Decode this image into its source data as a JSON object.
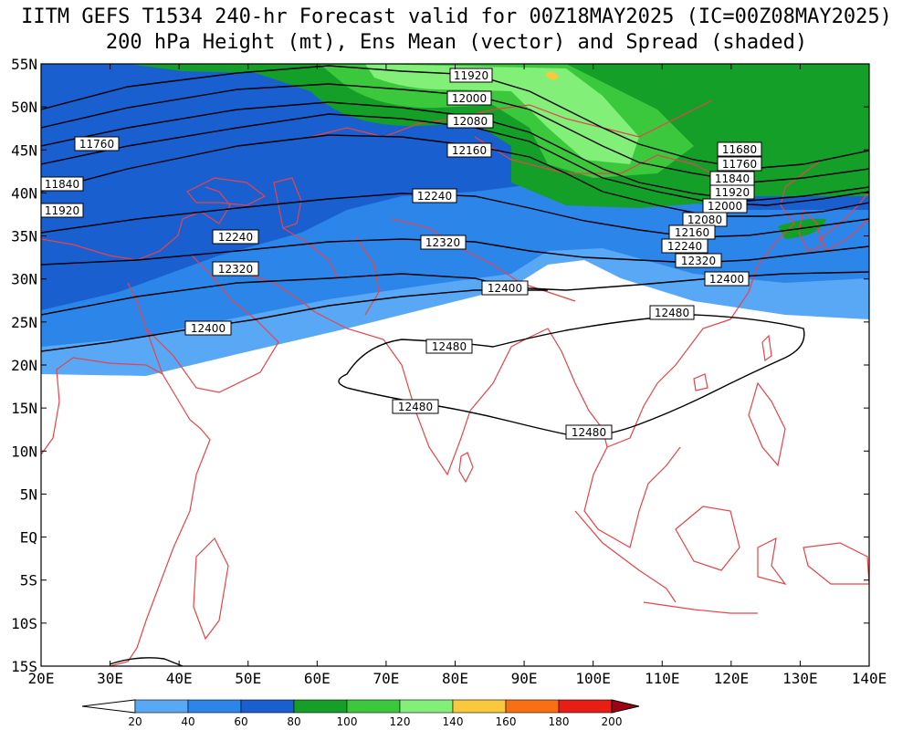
{
  "title": {
    "line1": "IITM GEFS T1534 240-hr Forecast valid for 00Z18MAY2025 (IC=00Z08MAY2025)",
    "line2": "200 hPa Height (mt), Ens Mean (vector) and Spread (shaded)"
  },
  "map": {
    "lat_ticks": [
      "55N",
      "50N",
      "45N",
      "40N",
      "35N",
      "30N",
      "25N",
      "20N",
      "15N",
      "10N",
      "5N",
      "EQ",
      "5S",
      "10S",
      "15S"
    ],
    "lon_ticks": [
      "20E",
      "30E",
      "40E",
      "50E",
      "60E",
      "70E",
      "80E",
      "90E",
      "100E",
      "110E",
      "120E",
      "130E",
      "140E"
    ],
    "lon_range": [
      20,
      140
    ],
    "lat_range": [
      -15,
      55
    ],
    "contour_color": "#000000",
    "coast_color": "#e8434a"
  },
  "contour_labels": {
    "l11920a": "11920",
    "l12000a": "12000",
    "l12080a": "12080",
    "l12160a": "12160",
    "l11760a": "11760",
    "l11840a": "11840",
    "l11920b": "11920",
    "l12240a": "12240",
    "l12240b": "12240",
    "l12320a": "12320",
    "l12320b": "12320",
    "l12400a": "12400",
    "l12400b": "12400",
    "l12400c": "12400",
    "l12480a": "12480",
    "l12480b": "12480",
    "l12480c": "12480",
    "l12480d": "12480",
    "l11680r": "11680",
    "l11760r": "11760",
    "l11840r": "11840",
    "l11920r": "11920",
    "l12000r": "12000",
    "l12080r": "12080",
    "l12160r": "12160",
    "l12240r": "12240",
    "l12320r": "12320"
  },
  "colorbar": {
    "labels": [
      "20",
      "40",
      "60",
      "80",
      "100",
      "120",
      "140",
      "160",
      "180",
      "200"
    ],
    "colors": [
      "#ffffff",
      "#58a8f5",
      "#2c86ea",
      "#1a5fd0",
      "#14a028",
      "#3cc83c",
      "#82f078",
      "#fac83c",
      "#fa6e14",
      "#e61e14",
      "#a00014"
    ]
  }
}
